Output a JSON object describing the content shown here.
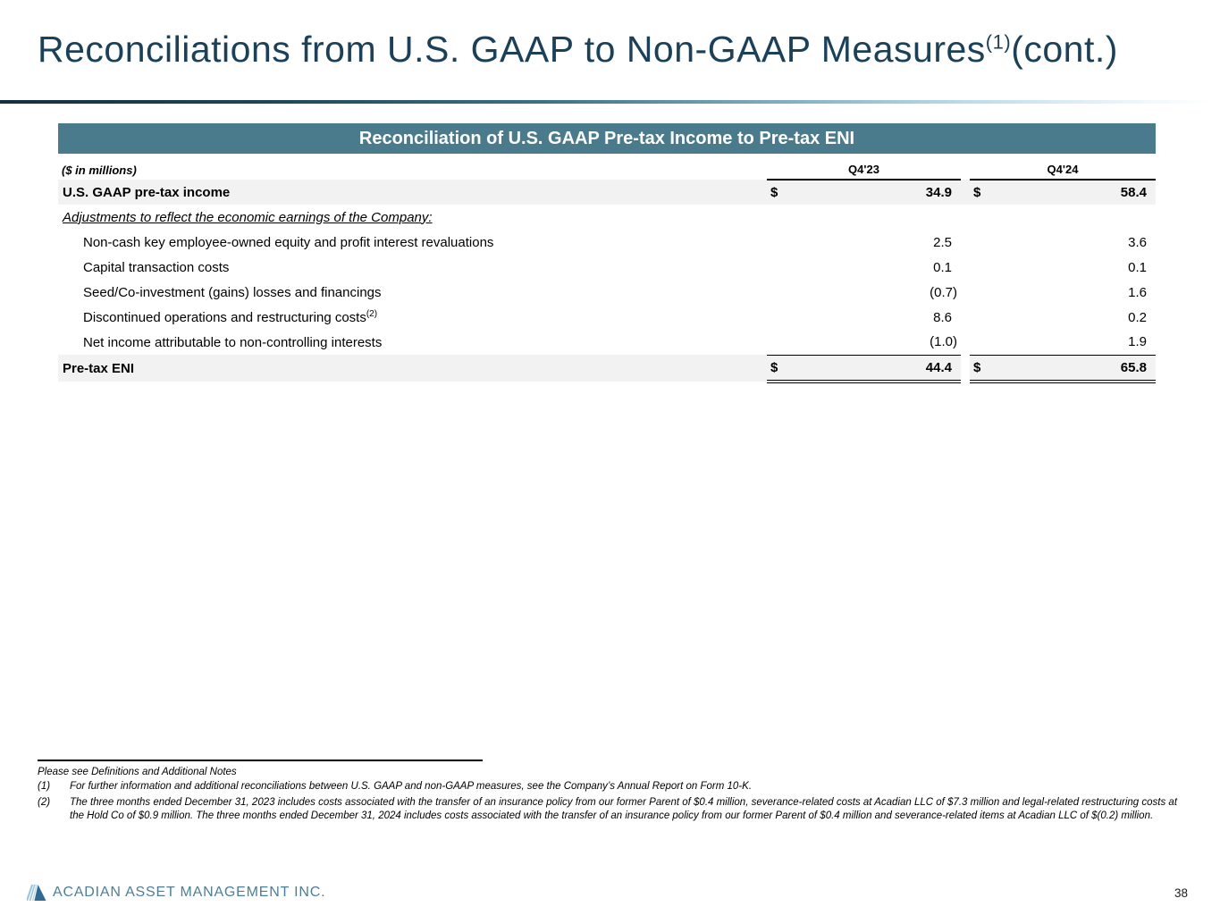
{
  "title": {
    "main": "Reconciliations from U.S. GAAP to Non-GAAP Measures",
    "superscript": "(1)",
    "suffix": "(cont.)"
  },
  "table": {
    "header_band": "Reconciliation of U.S. GAAP Pre-tax Income to Pre-tax ENI",
    "units_label": "($ in millions)",
    "columns": [
      "Q4'23",
      "Q4'24"
    ],
    "rows": [
      {
        "type": "total",
        "label": "U.S. GAAP pre-tax income",
        "d1": "$",
        "v1": "34.9",
        "d2": "$",
        "v2": "58.4"
      },
      {
        "type": "section",
        "label": "Adjustments to reflect the economic earnings of the Company:",
        "d1": "",
        "v1": "",
        "d2": "",
        "v2": ""
      },
      {
        "type": "item",
        "label": "Non-cash key employee-owned equity and profit interest revaluations",
        "d1": "",
        "v1": "2.5",
        "d2": "",
        "v2": "3.6"
      },
      {
        "type": "item",
        "label": "Capital transaction costs",
        "d1": "",
        "v1": "0.1",
        "d2": "",
        "v2": "0.1"
      },
      {
        "type": "item",
        "label": "Seed/Co-investment (gains) losses and financings",
        "d1": "",
        "v1": "(0.7)",
        "d2": "",
        "v2": "1.6"
      },
      {
        "type": "item",
        "label": "Discontinued operations and restructuring costs",
        "sup": "(2)",
        "d1": "",
        "v1": "8.6",
        "d2": "",
        "v2": "0.2"
      },
      {
        "type": "item",
        "label": "Net income attributable to non-controlling interests",
        "d1": "",
        "v1": "(1.0)",
        "d2": "",
        "v2": "1.9"
      },
      {
        "type": "total final",
        "label": "Pre-tax ENI",
        "d1": "$",
        "v1": "44.4",
        "d2": "$",
        "v2": "65.8"
      }
    ]
  },
  "footnotes": {
    "intro": "Please see Definitions and Additional Notes",
    "items": [
      {
        "num": "(1)",
        "text": "For further information and additional reconciliations between U.S. GAAP and non-GAAP measures, see the Company’s Annual Report on Form 10-K."
      },
      {
        "num": "(2)",
        "text": "The three months ended December 31, 2023 includes costs associated with the transfer of an insurance policy from our former Parent of $0.4 million, severance-related costs at Acadian LLC of $7.3 million and legal-related restructuring costs at the Hold Co of $0.9 million. The three months ended December 31, 2024 includes costs associated with the transfer of an insurance policy from our former Parent of $0.4 million and severance-related items at Acadian LLC of $(0.2) million."
      }
    ]
  },
  "footer": {
    "company": "ACADIAN ASSET MANAGEMENT INC.",
    "page_number": "38",
    "logo_icon": "acadian-triangle-logo-icon"
  },
  "colors": {
    "title_navy": "#1A4159",
    "accent_teal": "#4A7B8C",
    "row_gray": "#F2F2F2",
    "footer_blue": "#4C7E99",
    "logo_stripe_blue": "#9CC4DA",
    "logo_solid_blue": "#2F6A94",
    "rule_gradient_start": "#14303F",
    "rule_gradient_end": "#E9F5F9"
  }
}
